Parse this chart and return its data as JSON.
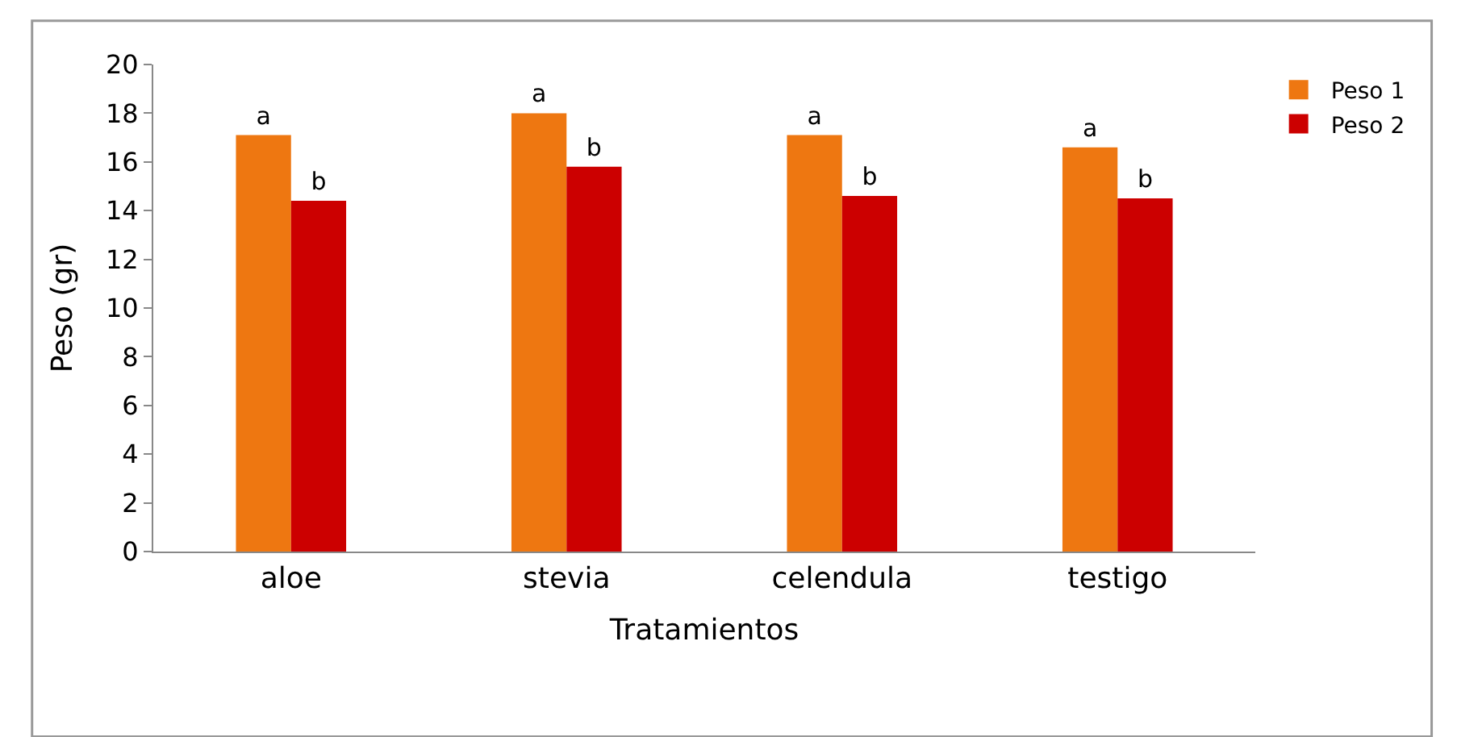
{
  "chart_data": {
    "type": "bar",
    "xlabel": "Tratamientos",
    "ylabel": "Peso (gr)",
    "categories": [
      "aloe",
      "stevia",
      "celendula",
      "testigo"
    ],
    "series": [
      {
        "name": "Peso 1",
        "color": "#ee7711",
        "values": [
          17.1,
          18.0,
          17.1,
          16.6
        ],
        "value_labels": [
          "a",
          "a",
          "a",
          "a"
        ]
      },
      {
        "name": "Peso 2",
        "color": "#cc0000",
        "values": [
          14.4,
          15.8,
          14.6,
          14.5
        ],
        "value_labels": [
          "b",
          "b",
          "b",
          "b"
        ]
      }
    ],
    "ylim": [
      0,
      20
    ],
    "yticks": [
      0,
      2,
      4,
      6,
      8,
      10,
      12,
      14,
      16,
      18,
      20
    ],
    "legend": "top right"
  }
}
